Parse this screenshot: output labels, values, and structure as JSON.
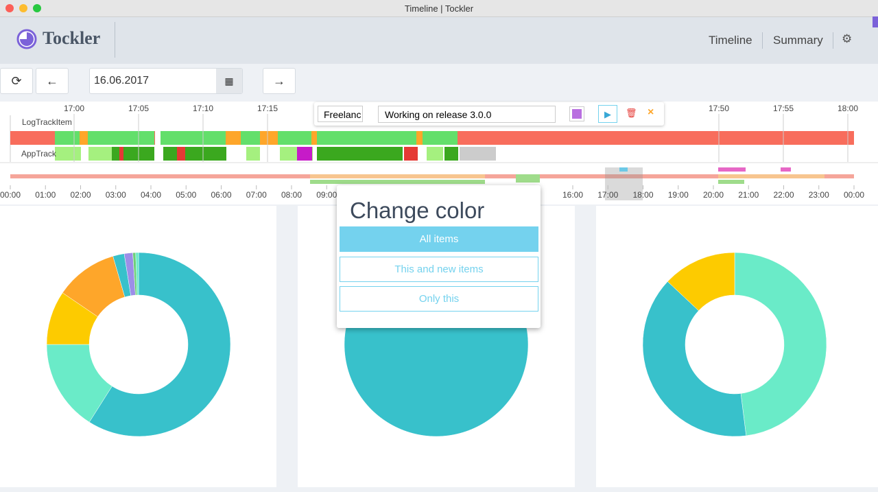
{
  "window": {
    "title": "Timeline | Tockler"
  },
  "header": {
    "app_name": "Tockler",
    "nav": [
      "Timeline",
      "Summary"
    ]
  },
  "toolbar": {
    "date": "16.06.2017"
  },
  "timeline": {
    "top_ticks": [
      "17:00",
      "17:05",
      "17:10",
      "17:15",
      null,
      null,
      null,
      null,
      null,
      null,
      "17:50",
      "17:55",
      "18:00"
    ],
    "rows": [
      "LogTrackItem",
      "AppTrack"
    ],
    "editor": {
      "tag": "Freelanc",
      "title": "Working on release 3.0.0"
    },
    "bottom_ticks": [
      "00:00",
      "01:00",
      "02:00",
      "03:00",
      "04:00",
      "05:00",
      "06:00",
      "07:00",
      "08:00",
      "09:00",
      null,
      null,
      null,
      null,
      null,
      null,
      "16:00",
      "17:00",
      "18:00",
      "19:00",
      "20:00",
      "21:00",
      "22:00",
      "23:00",
      "00:00"
    ]
  },
  "popup": {
    "title": "Change color",
    "options": [
      "All items",
      "This and new items",
      "Only this"
    ]
  },
  "pies": [
    {
      "values": [
        59,
        16,
        9.5,
        11,
        2,
        1.5,
        0.5,
        0.5
      ],
      "colors": [
        "#38c1cb",
        "#6aebc8",
        "#fdcb00",
        "#fea62a",
        "#38c1cb",
        "#9c8ee8",
        "#6dcf7a",
        "#6aebc8"
      ]
    },
    {
      "values": [
        100
      ],
      "colors": [
        "#38c1cb"
      ]
    },
    {
      "values": [
        48,
        39,
        13
      ],
      "colors": [
        "#6aebc8",
        "#38c1cb",
        "#fdcb00"
      ]
    }
  ]
}
